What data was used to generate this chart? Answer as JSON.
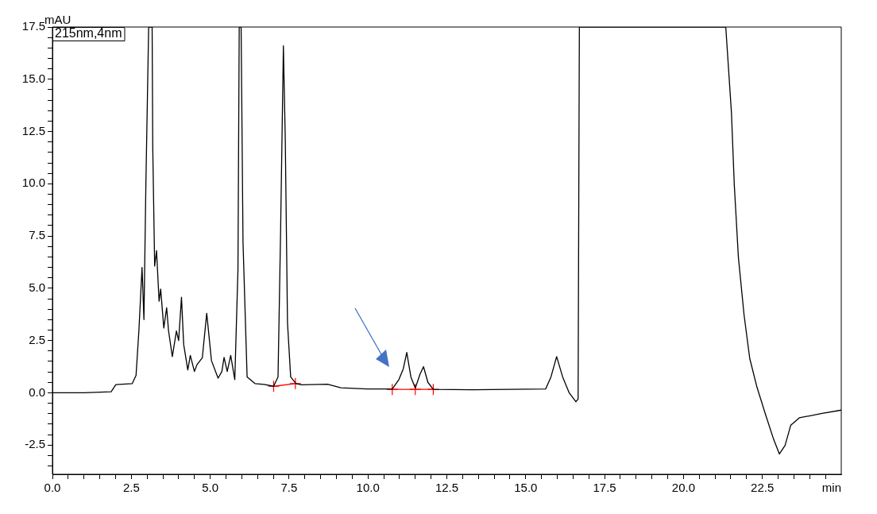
{
  "chart_data": {
    "type": "line",
    "xlabel": "min",
    "ylabel": "mAU",
    "annotations": [
      "215nm,4nm"
    ],
    "xlim": [
      0,
      25
    ],
    "ylim": [
      -3.9,
      17.5
    ],
    "xticks": [
      {
        "value": 0,
        "label": "0.0"
      },
      {
        "value": 0.5,
        "label": null
      },
      {
        "value": 1,
        "label": null
      },
      {
        "value": 1.5,
        "label": null
      },
      {
        "value": 2,
        "label": null
      },
      {
        "value": 2.5,
        "label": "2.5"
      },
      {
        "value": 3,
        "label": null
      },
      {
        "value": 3.5,
        "label": null
      },
      {
        "value": 4,
        "label": null
      },
      {
        "value": 4.5,
        "label": null
      },
      {
        "value": 5,
        "label": "5.0"
      },
      {
        "value": 5.5,
        "label": null
      },
      {
        "value": 6,
        "label": null
      },
      {
        "value": 6.5,
        "label": null
      },
      {
        "value": 7,
        "label": null
      },
      {
        "value": 7.5,
        "label": "7.5"
      },
      {
        "value": 8,
        "label": null
      },
      {
        "value": 8.5,
        "label": null
      },
      {
        "value": 9,
        "label": null
      },
      {
        "value": 9.5,
        "label": null
      },
      {
        "value": 10,
        "label": "10.0"
      },
      {
        "value": 10.5,
        "label": null
      },
      {
        "value": 11,
        "label": null
      },
      {
        "value": 11.5,
        "label": null
      },
      {
        "value": 12,
        "label": null
      },
      {
        "value": 12.5,
        "label": "12.5"
      },
      {
        "value": 13,
        "label": null
      },
      {
        "value": 13.5,
        "label": null
      },
      {
        "value": 14,
        "label": null
      },
      {
        "value": 14.5,
        "label": null
      },
      {
        "value": 15,
        "label": "15.0"
      },
      {
        "value": 15.5,
        "label": null
      },
      {
        "value": 16,
        "label": null
      },
      {
        "value": 16.5,
        "label": null
      },
      {
        "value": 17,
        "label": null
      },
      {
        "value": 17.5,
        "label": "17.5"
      },
      {
        "value": 18,
        "label": null
      },
      {
        "value": 18.5,
        "label": null
      },
      {
        "value": 19,
        "label": null
      },
      {
        "value": 19.5,
        "label": null
      },
      {
        "value": 20,
        "label": "20.0"
      },
      {
        "value": 20.5,
        "label": null
      },
      {
        "value": 21,
        "label": null
      },
      {
        "value": 21.5,
        "label": null
      },
      {
        "value": 22,
        "label": null
      },
      {
        "value": 22.5,
        "label": "22.5"
      },
      {
        "value": 23,
        "label": null
      },
      {
        "value": 23.5,
        "label": null
      },
      {
        "value": 24,
        "label": null
      },
      {
        "value": 24.5,
        "label": null
      }
    ],
    "yticks": [
      {
        "value": -3.5,
        "label": null
      },
      {
        "value": -3,
        "label": null
      },
      {
        "value": -2.5,
        "label": "-2.5"
      },
      {
        "value": -2,
        "label": null
      },
      {
        "value": -1.5,
        "label": null
      },
      {
        "value": -1,
        "label": null
      },
      {
        "value": -0.5,
        "label": null
      },
      {
        "value": 0,
        "label": "0.0"
      },
      {
        "value": 0.5,
        "label": null
      },
      {
        "value": 1,
        "label": null
      },
      {
        "value": 1.5,
        "label": null
      },
      {
        "value": 2,
        "label": null
      },
      {
        "value": 2.5,
        "label": "2.5"
      },
      {
        "value": 3,
        "label": null
      },
      {
        "value": 3.5,
        "label": null
      },
      {
        "value": 4,
        "label": null
      },
      {
        "value": 4.5,
        "label": null
      },
      {
        "value": 5,
        "label": "5.0"
      },
      {
        "value": 5.5,
        "label": null
      },
      {
        "value": 6,
        "label": null
      },
      {
        "value": 6.5,
        "label": null
      },
      {
        "value": 7,
        "label": null
      },
      {
        "value": 7.5,
        "label": "7.5"
      },
      {
        "value": 8,
        "label": null
      },
      {
        "value": 8.5,
        "label": null
      },
      {
        "value": 9,
        "label": null
      },
      {
        "value": 9.5,
        "label": null
      },
      {
        "value": 10,
        "label": "10.0"
      },
      {
        "value": 10.5,
        "label": null
      },
      {
        "value": 11,
        "label": null
      },
      {
        "value": 11.5,
        "label": null
      },
      {
        "value": 12,
        "label": null
      },
      {
        "value": 12.5,
        "label": "12.5"
      },
      {
        "value": 13,
        "label": null
      },
      {
        "value": 13.5,
        "label": null
      },
      {
        "value": 14,
        "label": null
      },
      {
        "value": 14.5,
        "label": null
      },
      {
        "value": 15,
        "label": "15.0"
      },
      {
        "value": 15.5,
        "label": null
      },
      {
        "value": 16,
        "label": null
      },
      {
        "value": 16.5,
        "label": null
      },
      {
        "value": 17,
        "label": null
      },
      {
        "value": 17.5,
        "label": "17.5"
      }
    ],
    "grid": false,
    "legend": false,
    "marker": "none",
    "line_style": "solid",
    "series": [
      {
        "color": "#000000",
        "x": [
          0,
          1.0,
          1.86,
          2.01,
          2.53,
          2.65,
          2.74,
          2.84,
          2.9,
          2.96,
          3.05,
          3.16,
          3.18,
          3.24,
          3.3,
          3.38,
          3.43,
          3.53,
          3.62,
          3.68,
          3.8,
          3.93,
          4.0,
          4.09,
          4.16,
          4.29,
          4.37,
          4.5,
          4.58,
          4.75,
          4.89,
          5.04,
          5.25,
          5.37,
          5.44,
          5.54,
          5.65,
          5.78,
          5.88,
          5.92,
          5.98,
          6.04,
          6.17,
          6.42,
          6.71,
          7.01,
          7.15,
          7.23,
          7.32,
          7.38,
          7.45,
          7.55,
          7.72,
          7.89,
          8.72,
          9.14,
          9.98,
          10.77,
          10.98,
          11.12,
          11.23,
          11.36,
          11.5,
          11.65,
          11.76,
          11.9,
          12.07,
          13.33,
          15.0,
          15.63,
          15.8,
          15.98,
          16.17,
          16.38,
          16.59,
          16.66,
          16.7,
          16.72,
          21.34,
          21.52,
          21.61,
          21.74,
          21.92,
          22.1,
          22.33,
          22.59,
          22.86,
          23.04,
          23.22,
          23.4,
          23.67,
          24.39,
          25
        ],
        "values": [
          0,
          0,
          0.05,
          0.39,
          0.44,
          0.83,
          2.96,
          6.0,
          3.5,
          9.8,
          17.5,
          17.5,
          11.7,
          6.06,
          6.8,
          4.38,
          4.96,
          3.1,
          4.07,
          2.96,
          1.73,
          2.96,
          2.5,
          4.57,
          2.31,
          1.09,
          1.79,
          1.02,
          1.34,
          1.67,
          3.8,
          1.54,
          0.7,
          1.02,
          1.69,
          1.02,
          1.79,
          0.63,
          5.9,
          17.5,
          17.5,
          7.2,
          0.76,
          0.44,
          0.4,
          0.31,
          0.76,
          7.6,
          16.6,
          12.1,
          3.35,
          0.76,
          0.44,
          0.38,
          0.41,
          0.24,
          0.18,
          0.18,
          0.63,
          1.15,
          1.93,
          0.76,
          0.22,
          0.89,
          1.25,
          0.5,
          0.16,
          0.14,
          0.17,
          0.18,
          0.76,
          1.73,
          0.76,
          -0.01,
          -0.43,
          -0.3,
          17.5,
          17.5,
          17.5,
          13.4,
          9.95,
          6.48,
          3.72,
          1.64,
          0.26,
          -0.99,
          -2.24,
          -2.93,
          -2.52,
          -1.55,
          -1.2,
          -0.99,
          -0.83
        ]
      },
      {
        "color": "#ff0000",
        "marker": "cross",
        "x": [
          7.01,
          7.7
        ],
        "values": [
          0.31,
          0.44
        ]
      },
      {
        "color": "#ff0000",
        "marker": "cross",
        "x": [
          10.77,
          11.5,
          12.07
        ],
        "values": [
          0.16,
          0.16,
          0.16
        ]
      }
    ]
  }
}
